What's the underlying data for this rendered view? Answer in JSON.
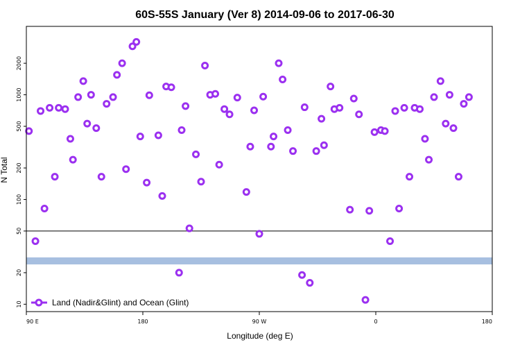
{
  "colors": {
    "marker": "#9b30f0",
    "band": "#a7bfe0",
    "axis": "#000000",
    "background": "#ffffff"
  },
  "chart_data": {
    "type": "scatter",
    "title": "60S-55S January (Ver 8)   2014-09-06 to 2017-06-30",
    "xlabel": "Longitude (deg E)",
    "ylabel": "N Total",
    "ylog": true,
    "xlim": [
      90,
      450
    ],
    "ylim": [
      8.5,
      4500
    ],
    "x_ticks": [
      {
        "value": 90,
        "label": "90 E"
      },
      {
        "value": 180,
        "label": "180"
      },
      {
        "value": 270,
        "label": "90 W"
      },
      {
        "value": 360,
        "label": "0"
      },
      {
        "value": 450,
        "label": "90 E"
      }
    ],
    "x_ticks_right": [
      {
        "value": 450,
        "label": "180"
      }
    ],
    "y_ticks": [
      {
        "value": 10,
        "label": "10"
      },
      {
        "value": 20,
        "label": "20"
      },
      {
        "value": 50,
        "label": "50"
      },
      {
        "value": 100,
        "label": "100"
      },
      {
        "value": 200,
        "label": "200"
      },
      {
        "value": 500,
        "label": "500"
      },
      {
        "value": 1000,
        "label": "1000"
      },
      {
        "value": 2000,
        "label": "2000"
      }
    ],
    "reference_line": 50,
    "band_range": [
      24,
      28
    ],
    "legend": {
      "position": "bottom-left",
      "entries": [
        "Land (Nadir&Glint) and Ocean (Glint)"
      ]
    },
    "series": [
      {
        "name": "Land (Nadir&Glint) and Ocean (Glint)",
        "points": [
          [
            92,
            450
          ],
          [
            97,
            40
          ],
          [
            101,
            700
          ],
          [
            104,
            82
          ],
          [
            108,
            750
          ],
          [
            112,
            165
          ],
          [
            115,
            750
          ],
          [
            120,
            730
          ],
          [
            124,
            380
          ],
          [
            126,
            240
          ],
          [
            130,
            950
          ],
          [
            134,
            1350
          ],
          [
            137,
            530
          ],
          [
            140,
            1000
          ],
          [
            144,
            480
          ],
          [
            148,
            165
          ],
          [
            152,
            820
          ],
          [
            157,
            950
          ],
          [
            160,
            1550
          ],
          [
            164,
            2000
          ],
          [
            167,
            195
          ],
          [
            172,
            2900
          ],
          [
            175,
            3200
          ],
          [
            178,
            400
          ],
          [
            183,
            145
          ],
          [
            185,
            990
          ],
          [
            192,
            410
          ],
          [
            195,
            108
          ],
          [
            198,
            1200
          ],
          [
            202,
            1180
          ],
          [
            208,
            20
          ],
          [
            210,
            460
          ],
          [
            213,
            780
          ],
          [
            216,
            53
          ],
          [
            221,
            270
          ],
          [
            225,
            148
          ],
          [
            228,
            1900
          ],
          [
            232,
            1000
          ],
          [
            236,
            1020
          ],
          [
            239,
            215
          ],
          [
            243,
            730
          ],
          [
            247,
            650
          ],
          [
            253,
            940
          ],
          [
            260,
            118
          ],
          [
            263,
            320
          ],
          [
            266,
            710
          ],
          [
            270,
            47
          ],
          [
            273,
            960
          ],
          [
            279,
            320
          ],
          [
            281,
            400
          ],
          [
            285,
            2000
          ],
          [
            288,
            1400
          ],
          [
            292,
            460
          ],
          [
            296,
            290
          ],
          [
            303,
            19
          ],
          [
            305,
            760
          ],
          [
            309,
            16
          ],
          [
            314,
            290
          ],
          [
            318,
            590
          ],
          [
            320,
            330
          ],
          [
            325,
            1200
          ],
          [
            328,
            730
          ],
          [
            332,
            750
          ],
          [
            340,
            80
          ],
          [
            343,
            920
          ],
          [
            347,
            650
          ],
          [
            352,
            11
          ],
          [
            355,
            78
          ],
          [
            359,
            440
          ],
          [
            364,
            460
          ],
          [
            367,
            450
          ],
          [
            371,
            40
          ],
          [
            375,
            700
          ],
          [
            378,
            82
          ],
          [
            382,
            750
          ],
          [
            386,
            165
          ],
          [
            390,
            750
          ],
          [
            394,
            730
          ],
          [
            398,
            380
          ],
          [
            401,
            240
          ],
          [
            405,
            950
          ],
          [
            410,
            1350
          ],
          [
            414,
            530
          ],
          [
            417,
            1000
          ],
          [
            420,
            480
          ],
          [
            424,
            165
          ],
          [
            428,
            820
          ],
          [
            432,
            950
          ]
        ]
      }
    ]
  }
}
